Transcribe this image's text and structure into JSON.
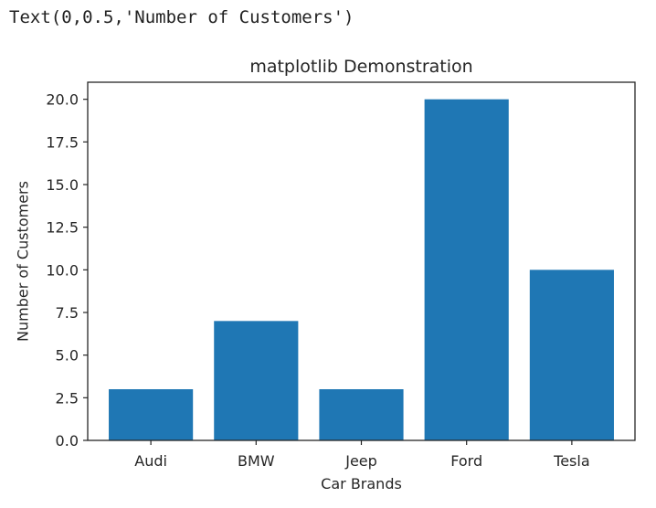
{
  "output_text": "Text(0,0.5,'Number of Customers')",
  "colors": {
    "bar": "#1f77b4",
    "axis": "#262626",
    "background": "#ffffff"
  },
  "chart_data": {
    "type": "bar",
    "title": "matplotlib Demonstration",
    "xlabel": "Car Brands",
    "ylabel": "Number of Customers",
    "categories": [
      "Audi",
      "BMW",
      "Jeep",
      "Ford",
      "Tesla"
    ],
    "values": [
      3,
      7,
      3,
      20,
      10
    ],
    "ylim": [
      0,
      21
    ],
    "yticks": [
      0,
      2.5,
      5,
      7.5,
      10,
      12.5,
      15,
      17.5,
      20
    ],
    "ytick_labels": [
      "0.0",
      "2.5",
      "5.0",
      "7.5",
      "10.0",
      "12.5",
      "15.0",
      "17.5",
      "20.0"
    ],
    "grid": false,
    "legend": "none"
  }
}
